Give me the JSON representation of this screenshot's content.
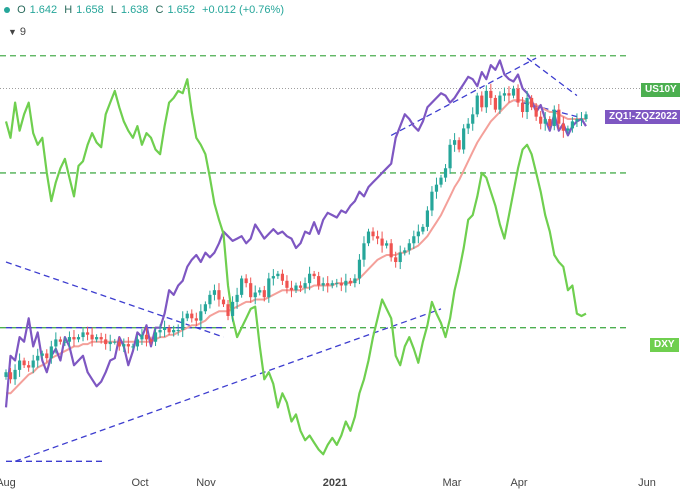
{
  "header": {
    "o_label": "O",
    "o": "1.642",
    "h_label": "H",
    "h": "1.658",
    "l_label": "L",
    "l": "1.638",
    "c_label": "C",
    "c": "1.652",
    "change": "+0.012 (+0.76%)",
    "studies_count": "9"
  },
  "colors": {
    "up": "#26a69a",
    "down": "#ef5350",
    "ma": "#f4a09a",
    "us10y": "#4caf50",
    "zq": "#7e57c2",
    "dxy": "#6fcf4f",
    "trend": "#3d3dcf"
  },
  "chart_data": {
    "type": "line",
    "title": "",
    "x_ticks": [
      "Aug",
      "Oct",
      "Nov",
      "2021",
      "Mar",
      "Apr",
      "Jun"
    ],
    "series": [
      {
        "name": "US10Y",
        "style": "candlestick",
        "values": [
          0.55,
          0.52,
          0.56,
          0.6,
          0.58,
          0.57,
          0.6,
          0.62,
          0.63,
          0.61,
          0.66,
          0.69,
          0.68,
          0.68,
          0.7,
          0.69,
          0.7,
          0.72,
          0.71,
          0.69,
          0.7,
          0.69,
          0.67,
          0.68,
          0.68,
          0.66,
          0.67,
          0.66,
          0.66,
          0.69,
          0.71,
          0.69,
          0.68,
          0.72,
          0.73,
          0.74,
          0.72,
          0.73,
          0.73,
          0.78,
          0.8,
          0.78,
          0.77,
          0.81,
          0.84,
          0.88,
          0.9,
          0.86,
          0.84,
          0.79,
          0.85,
          0.88,
          0.95,
          0.93,
          0.87,
          0.89,
          0.9,
          0.87,
          0.95,
          0.96,
          0.97,
          0.94,
          0.91,
          0.9,
          0.92,
          0.91,
          0.93,
          0.97,
          0.96,
          0.92,
          0.93,
          0.92,
          0.93,
          0.93,
          0.92,
          0.94,
          0.93,
          0.95,
          1.03,
          1.1,
          1.15,
          1.13,
          1.12,
          1.09,
          1.1,
          1.04,
          1.02,
          1.06,
          1.07,
          1.1,
          1.13,
          1.15,
          1.17,
          1.24,
          1.32,
          1.35,
          1.38,
          1.42,
          1.52,
          1.54,
          1.5,
          1.59,
          1.61,
          1.65,
          1.73,
          1.68,
          1.75,
          1.72,
          1.67,
          1.73,
          1.74,
          1.73,
          1.76,
          1.7,
          1.66,
          1.72,
          1.68,
          1.64,
          1.61,
          1.63,
          1.6,
          1.67,
          1.61,
          1.58,
          1.59,
          1.62,
          1.63,
          1.63,
          1.65
        ]
      },
      {
        "name": "ZQ1!-ZQZ2022",
        "style": "line",
        "values": [
          0.4,
          0.62,
          0.6,
          0.7,
          0.68,
          0.78,
          0.66,
          0.72,
          0.6,
          0.55,
          0.62,
          0.65,
          0.6,
          0.7,
          0.66,
          0.58,
          0.6,
          0.62,
          0.55,
          0.52,
          0.49,
          0.51,
          0.55,
          0.6,
          0.61,
          0.7,
          0.66,
          0.58,
          0.64,
          0.72,
          0.7,
          0.75,
          0.66,
          0.74,
          0.74,
          0.8,
          0.9,
          0.88,
          0.92,
          0.94,
          1.0,
          1.03,
          1.05,
          1.02,
          1.06,
          1.04,
          1.06,
          1.1,
          1.15,
          1.13,
          1.11,
          1.12,
          1.13,
          1.1,
          1.12,
          1.18,
          1.15,
          1.12,
          1.14,
          1.16,
          1.14,
          1.15,
          1.13,
          1.12,
          1.08,
          1.1,
          1.15,
          1.14,
          1.19,
          1.14,
          1.2,
          1.23,
          1.22,
          1.21,
          1.24,
          1.23,
          1.26,
          1.28,
          1.32,
          1.3,
          1.34,
          1.36,
          1.38,
          1.4,
          1.42,
          1.44,
          1.55,
          1.6,
          1.65,
          1.63,
          1.6,
          1.58,
          1.62,
          1.68,
          1.7,
          1.72,
          1.74,
          1.73,
          1.7,
          1.72,
          1.75,
          1.78,
          1.81,
          1.8,
          1.77,
          1.83,
          1.8,
          1.86,
          1.84,
          1.88,
          1.82,
          1.8,
          1.79,
          1.82,
          1.76,
          1.74,
          1.71,
          1.66,
          1.69,
          1.63,
          1.58,
          1.65,
          1.58,
          1.61,
          1.56,
          1.6,
          1.62,
          1.63,
          1.6
        ]
      },
      {
        "name": "DXY",
        "style": "line",
        "values": [
          1.62,
          1.55,
          1.7,
          1.58,
          1.65,
          1.7,
          1.57,
          1.52,
          1.55,
          1.4,
          1.28,
          1.36,
          1.42,
          1.46,
          1.38,
          1.3,
          1.43,
          1.45,
          1.52,
          1.57,
          1.53,
          1.51,
          1.65,
          1.7,
          1.75,
          1.68,
          1.62,
          1.58,
          1.55,
          1.6,
          1.52,
          1.57,
          1.55,
          1.5,
          1.48,
          1.6,
          1.7,
          1.72,
          1.75,
          1.74,
          1.8,
          1.66,
          1.55,
          1.52,
          1.48,
          1.38,
          1.27,
          1.2,
          1.14,
          0.92,
          0.78,
          0.7,
          0.74,
          0.78,
          0.82,
          0.83,
          0.66,
          0.52,
          0.55,
          0.5,
          0.4,
          0.46,
          0.42,
          0.34,
          0.37,
          0.3,
          0.26,
          0.28,
          0.25,
          0.22,
          0.2,
          0.24,
          0.27,
          0.24,
          0.28,
          0.34,
          0.3,
          0.36,
          0.46,
          0.52,
          0.6,
          0.7,
          0.78,
          0.86,
          0.82,
          0.78,
          0.62,
          0.58,
          0.66,
          0.7,
          0.65,
          0.59,
          0.68,
          0.75,
          0.85,
          0.8,
          0.76,
          0.7,
          0.78,
          0.9,
          0.98,
          1.08,
          1.2,
          1.22,
          1.3,
          1.4,
          1.38,
          1.32,
          1.26,
          1.18,
          1.12,
          1.22,
          1.32,
          1.42,
          1.5,
          1.52,
          1.48,
          1.4,
          1.32,
          1.22,
          1.15,
          1.05,
          1.02,
          1.0,
          0.9,
          0.92,
          0.8,
          0.79,
          0.8
        ]
      }
    ],
    "ma_values": [
      0.46,
      0.46,
      0.48,
      0.5,
      0.52,
      0.54,
      0.55,
      0.57,
      0.58,
      0.59,
      0.61,
      0.62,
      0.63,
      0.64,
      0.65,
      0.66,
      0.66,
      0.67,
      0.67,
      0.68,
      0.68,
      0.68,
      0.68,
      0.68,
      0.68,
      0.68,
      0.68,
      0.68,
      0.68,
      0.68,
      0.68,
      0.68,
      0.68,
      0.69,
      0.7,
      0.7,
      0.71,
      0.71,
      0.72,
      0.73,
      0.74,
      0.75,
      0.75,
      0.76,
      0.77,
      0.79,
      0.8,
      0.81,
      0.81,
      0.81,
      0.82,
      0.83,
      0.84,
      0.85,
      0.85,
      0.86,
      0.86,
      0.86,
      0.87,
      0.88,
      0.89,
      0.9,
      0.9,
      0.9,
      0.9,
      0.9,
      0.91,
      0.91,
      0.92,
      0.92,
      0.92,
      0.92,
      0.92,
      0.93,
      0.93,
      0.93,
      0.93,
      0.94,
      0.95,
      0.97,
      0.99,
      1.01,
      1.03,
      1.04,
      1.05,
      1.05,
      1.05,
      1.06,
      1.06,
      1.07,
      1.08,
      1.09,
      1.11,
      1.13,
      1.16,
      1.19,
      1.22,
      1.26,
      1.3,
      1.34,
      1.37,
      1.41,
      1.45,
      1.49,
      1.53,
      1.56,
      1.59,
      1.62,
      1.64,
      1.66,
      1.68,
      1.7,
      1.71,
      1.71,
      1.71,
      1.7,
      1.7,
      1.69,
      1.68,
      1.67,
      1.66,
      1.66,
      1.65,
      1.64,
      1.63,
      1.63,
      1.63,
      1.63,
      1.63
    ],
    "y_range": [
      0.15,
      1.95
    ],
    "horizontal_levels": [
      1.9,
      1.76,
      1.4,
      0.74
    ],
    "trendlines": [
      {
        "from": [
          0,
          1.02
        ],
        "to": [
          48,
          0.7
        ]
      },
      {
        "from": [
          2,
          0.17
        ],
        "to": [
          96,
          0.82
        ]
      },
      {
        "from": [
          85,
          1.56
        ],
        "to": [
          117,
          1.89
        ]
      },
      {
        "from": [
          115,
          1.89
        ],
        "to": [
          126,
          1.73
        ]
      },
      {
        "from": [
          112,
          1.71
        ],
        "to": [
          126,
          1.64
        ]
      }
    ],
    "horizontal_segments": [
      {
        "y": 0.74,
        "x_from": 0,
        "x_to": 48
      },
      {
        "y": 0.17,
        "x_from": 0,
        "x_to": 22
      }
    ],
    "tag_labels": {
      "us10y": "US10Y",
      "zq": "ZQ1!-ZQZ2022",
      "dxy": "DXY"
    },
    "legend": "right-edge tags",
    "grid": false
  }
}
